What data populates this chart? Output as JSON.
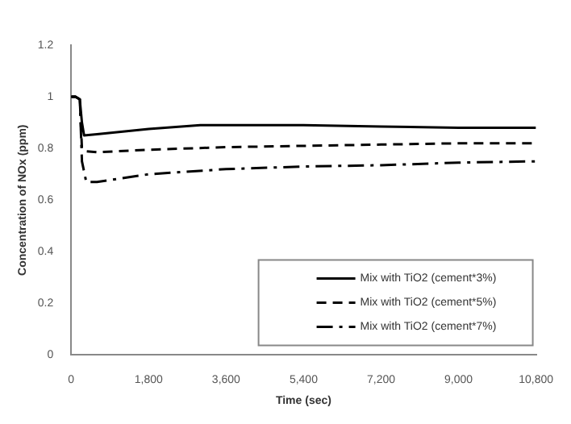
{
  "chart_data": {
    "type": "line",
    "xlabel": "Time (sec)",
    "ylabel": "Concentration of NOx (ppm)",
    "xlim": [
      0,
      10800
    ],
    "xticks": [
      0,
      {
        "value": 1800,
        "label": "1,800"
      },
      {
        "value": 3600,
        "label": "3,600"
      },
      {
        "value": 5400,
        "label": "5,400"
      },
      {
        "value": 7200,
        "label": "7,200"
      },
      {
        "value": 9000,
        "label": "9,000"
      },
      {
        "value": 10800,
        "label": "10,800"
      }
    ],
    "ylim": [
      0,
      1.2
    ],
    "yticks": [
      0,
      0.2,
      0.4,
      0.6,
      0.8,
      1,
      1.2
    ],
    "grid": false,
    "legend": "bottom right",
    "marker": "none",
    "series": [
      {
        "name": "Mix with TiO2 (cement*3%)",
        "color": "#000000",
        "line_style": "solid",
        "x": [
          0,
          100,
          200,
          250,
          300,
          600,
          1800,
          3000,
          5400,
          7200,
          9000,
          10800
        ],
        "values": [
          1.0,
          1.0,
          0.99,
          0.9,
          0.85,
          0.855,
          0.875,
          0.89,
          0.89,
          0.885,
          0.88,
          0.88
        ]
      },
      {
        "name": "Mix with TiO2 (cement*5%)",
        "color": "#000000",
        "line_style": "dashed",
        "x": [
          0,
          100,
          200,
          250,
          300,
          600,
          1800,
          3600,
          5400,
          7200,
          9000,
          10800
        ],
        "values": [
          1.0,
          1.0,
          0.99,
          0.8,
          0.79,
          0.785,
          0.795,
          0.805,
          0.81,
          0.815,
          0.82,
          0.82
        ]
      },
      {
        "name": "Mix with TiO2 (cement*7%)",
        "color": "#000000",
        "line_style": "dashdot",
        "x": [
          0,
          100,
          200,
          250,
          350,
          600,
          1800,
          3600,
          5400,
          7200,
          9000,
          10800
        ],
        "values": [
          1.0,
          1.0,
          0.99,
          0.75,
          0.67,
          0.67,
          0.7,
          0.72,
          0.73,
          0.735,
          0.745,
          0.75
        ]
      }
    ]
  }
}
